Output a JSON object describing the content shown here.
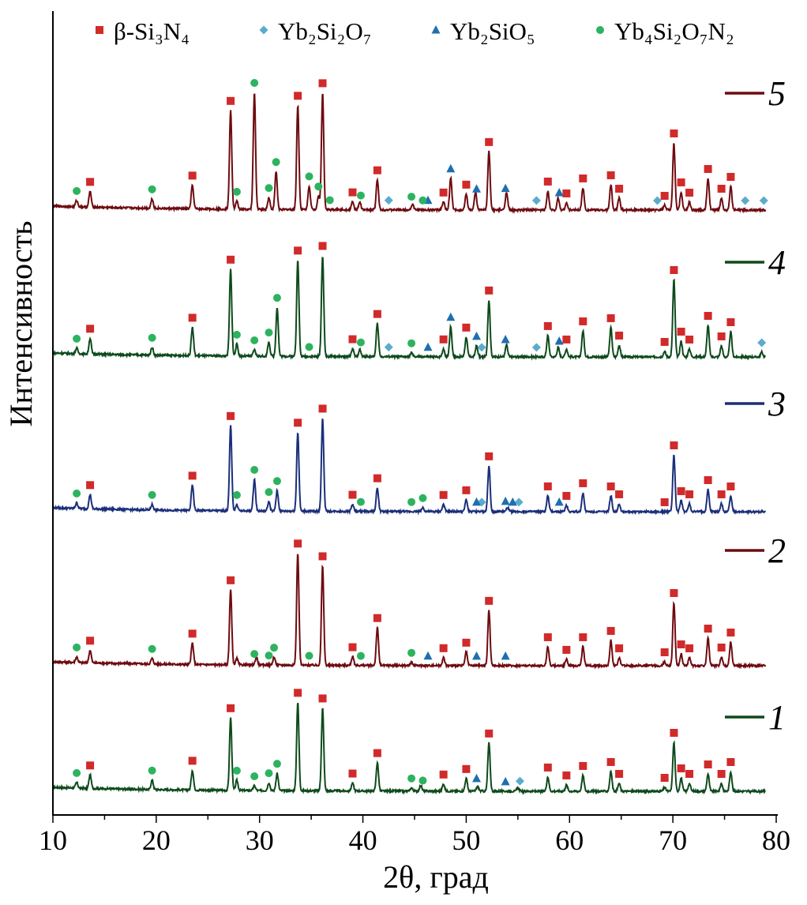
{
  "chart_data": {
    "type": "line",
    "xlabel": "2θ, град",
    "ylabel": "Интенсивность",
    "xlim": [
      10,
      80
    ],
    "xticks": [
      10,
      20,
      30,
      40,
      50,
      60,
      70,
      80
    ],
    "grid": false,
    "yaxis_ticks": "none",
    "legend_placement": "top",
    "legend": [
      {
        "key": "si3n4",
        "label": "β-Si₃N₄",
        "marker": "square",
        "color": "#d12a2a"
      },
      {
        "key": "yb2si2o7",
        "label": "Yb₂Si₂O₇",
        "marker": "diamond",
        "color": "#5aaccc"
      },
      {
        "key": "yb2sio5",
        "label": "Yb₂SiO₅",
        "marker": "triangle",
        "color": "#1f6fb0"
      },
      {
        "key": "yb4si2o7n2",
        "label": "Yb₄Si₂O₇N₂",
        "marker": "circle",
        "color": "#2db35f"
      }
    ],
    "series": [
      {
        "name": "1",
        "color": "#0e4a1c",
        "peaks": [
          [
            12.3,
            7
          ],
          [
            13.6,
            17
          ],
          [
            19.6,
            12
          ],
          [
            23.5,
            25
          ],
          [
            27.2,
            92
          ],
          [
            27.8,
            13
          ],
          [
            29.5,
            6
          ],
          [
            30.9,
            10
          ],
          [
            31.7,
            22
          ],
          [
            33.7,
            112
          ],
          [
            36.1,
            105
          ],
          [
            39,
            10
          ],
          [
            41.4,
            36
          ],
          [
            44.7,
            4
          ],
          [
            45.6,
            7
          ],
          [
            47.8,
            9
          ],
          [
            50,
            16
          ],
          [
            51.1,
            6
          ],
          [
            52.2,
            61
          ],
          [
            55,
            4
          ],
          [
            57.9,
            18
          ],
          [
            59.7,
            8
          ],
          [
            61.3,
            20
          ],
          [
            64,
            25
          ],
          [
            64.8,
            10
          ],
          [
            69.2,
            5
          ],
          [
            70.1,
            62
          ],
          [
            70.8,
            17
          ],
          [
            71.6,
            10
          ],
          [
            73.4,
            22
          ],
          [
            74.7,
            10
          ],
          [
            75.6,
            25
          ]
        ],
        "markers": {
          "si3n4": [
            13.6,
            23.5,
            27.2,
            33.7,
            36.1,
            39,
            41.4,
            47.8,
            50,
            52.2,
            57.9,
            59.7,
            61.3,
            64,
            64.8,
            69.2,
            70.1,
            70.8,
            71.6,
            73.4,
            74.7,
            75.6
          ],
          "yb2si2o7": [
            55.2
          ],
          "yb2sio5": [
            51,
            53.8
          ],
          "yb4si2o7n2": [
            12.3,
            19.6,
            27.8,
            29.5,
            30.9,
            31.7,
            44.7,
            45.8
          ]
        }
      },
      {
        "name": "2",
        "color": "#6e0b10",
        "peaks": [
          [
            12.3,
            7
          ],
          [
            13.6,
            16
          ],
          [
            19.6,
            7
          ],
          [
            23.5,
            27
          ],
          [
            27.2,
            95
          ],
          [
            27.8,
            8
          ],
          [
            29.7,
            10
          ],
          [
            31.4,
            10
          ],
          [
            33.7,
            142
          ],
          [
            36.1,
            126
          ],
          [
            39,
            11
          ],
          [
            41.4,
            48
          ],
          [
            44.7,
            4
          ],
          [
            47.8,
            10
          ],
          [
            50,
            17
          ],
          [
            52.2,
            70
          ],
          [
            57.9,
            24
          ],
          [
            59.7,
            8
          ],
          [
            61.3,
            24
          ],
          [
            64,
            32
          ],
          [
            64.8,
            10
          ],
          [
            69.2,
            5
          ],
          [
            70.1,
            80
          ],
          [
            70.8,
            15
          ],
          [
            71.6,
            10
          ],
          [
            73.4,
            35
          ],
          [
            74.7,
            11
          ],
          [
            75.6,
            30
          ]
        ],
        "markers": {
          "si3n4": [
            13.6,
            23.5,
            27.2,
            33.7,
            36.1,
            39,
            41.4,
            47.8,
            50,
            52.2,
            57.9,
            59.7,
            61.3,
            64,
            64.8,
            69.2,
            70.1,
            70.8,
            71.6,
            73.4,
            74.7,
            75.6
          ],
          "yb2si2o7": [],
          "yb2sio5": [
            46.3,
            51,
            53.8
          ],
          "yb4si2o7n2": [
            12.3,
            19.6,
            29.5,
            30.9,
            31.4,
            34.8,
            39.8,
            44.7
          ]
        }
      },
      {
        "name": "3",
        "color": "#1b2f7a",
        "peaks": [
          [
            12.3,
            7
          ],
          [
            13.6,
            18
          ],
          [
            19.6,
            7
          ],
          [
            23.5,
            32
          ],
          [
            27.2,
            108
          ],
          [
            27.8,
            8
          ],
          [
            29.5,
            40
          ],
          [
            30.9,
            12
          ],
          [
            31.7,
            26
          ],
          [
            33.7,
            100
          ],
          [
            36.1,
            118
          ],
          [
            39,
            9
          ],
          [
            41.4,
            30
          ],
          [
            45.8,
            5
          ],
          [
            47.8,
            9
          ],
          [
            50,
            15
          ],
          [
            52.2,
            58
          ],
          [
            54,
            5
          ],
          [
            57.9,
            20
          ],
          [
            59.7,
            8
          ],
          [
            61.3,
            24
          ],
          [
            64,
            20
          ],
          [
            64.8,
            10
          ],
          [
            70.1,
            72
          ],
          [
            70.8,
            14
          ],
          [
            71.6,
            10
          ],
          [
            73.4,
            28
          ],
          [
            74.7,
            10
          ],
          [
            75.6,
            20
          ]
        ],
        "markers": {
          "si3n4": [
            13.6,
            23.5,
            27.2,
            33.7,
            36.1,
            39,
            41.4,
            47.8,
            50,
            52.2,
            57.9,
            59.7,
            61.3,
            64,
            64.8,
            69.2,
            70.1,
            70.8,
            71.6,
            73.4,
            74.7,
            75.6
          ],
          "yb2si2o7": [
            51.5,
            55.1
          ],
          "yb2sio5": [
            51,
            53.8,
            54.5,
            59
          ],
          "yb4si2o7n2": [
            12.3,
            19.6,
            27.8,
            29.5,
            30.9,
            31.7,
            39.8,
            44.7,
            45.8
          ]
        }
      },
      {
        "name": "4",
        "color": "#0e4a1c",
        "peaks": [
          [
            12.3,
            7
          ],
          [
            13.6,
            20
          ],
          [
            19.6,
            10
          ],
          [
            23.5,
            36
          ],
          [
            27.2,
            110
          ],
          [
            27.8,
            15
          ],
          [
            29.5,
            8
          ],
          [
            30.9,
            18
          ],
          [
            31.7,
            62
          ],
          [
            33.7,
            122
          ],
          [
            36.1,
            128
          ],
          [
            39,
            10
          ],
          [
            39.7,
            9
          ],
          [
            41.4,
            42
          ],
          [
            44.7,
            5
          ],
          [
            47.8,
            10
          ],
          [
            48.5,
            38
          ],
          [
            50,
            25
          ],
          [
            51,
            14
          ],
          [
            52.2,
            72
          ],
          [
            53.9,
            15
          ],
          [
            57.9,
            27
          ],
          [
            58.9,
            12
          ],
          [
            59.7,
            10
          ],
          [
            61.3,
            33
          ],
          [
            64,
            37
          ],
          [
            64.8,
            15
          ],
          [
            69.2,
            7
          ],
          [
            70.1,
            98
          ],
          [
            70.8,
            20
          ],
          [
            71.6,
            10
          ],
          [
            73.4,
            40
          ],
          [
            74.7,
            14
          ],
          [
            75.6,
            32
          ],
          [
            78.6,
            6
          ]
        ],
        "markers": {
          "si3n4": [
            13.6,
            23.5,
            27.2,
            33.7,
            36.1,
            39,
            41.4,
            47.8,
            50,
            52.2,
            57.9,
            59.7,
            61.3,
            64,
            64.8,
            69.2,
            70.1,
            70.8,
            71.6,
            73.4,
            74.7,
            75.6
          ],
          "yb2si2o7": [
            42.5,
            51.5,
            56.8,
            78.6
          ],
          "yb2sio5": [
            46.3,
            48.5,
            51,
            53.8,
            59
          ],
          "yb4si2o7n2": [
            12.3,
            19.6,
            27.8,
            29.5,
            30.9,
            31.7,
            34.8,
            39.8,
            44.7
          ]
        }
      },
      {
        "name": "5",
        "color": "#6e0b10",
        "peaks": [
          [
            12.3,
            8
          ],
          [
            13.6,
            20
          ],
          [
            19.6,
            12
          ],
          [
            23.5,
            30
          ],
          [
            27.2,
            125
          ],
          [
            27.8,
            10
          ],
          [
            29.5,
            148
          ],
          [
            30.9,
            15
          ],
          [
            31.6,
            48
          ],
          [
            33.7,
            132
          ],
          [
            34.8,
            30
          ],
          [
            35.7,
            17
          ],
          [
            36.1,
            148
          ],
          [
            39,
            10
          ],
          [
            39.7,
            9
          ],
          [
            41.4,
            38
          ],
          [
            44.8,
            7
          ],
          [
            47.8,
            10
          ],
          [
            48.5,
            40
          ],
          [
            50,
            20
          ],
          [
            50.9,
            22
          ],
          [
            52.2,
            74
          ],
          [
            53.9,
            23
          ],
          [
            57.9,
            24
          ],
          [
            58.9,
            15
          ],
          [
            59.7,
            9
          ],
          [
            61.3,
            28
          ],
          [
            64,
            32
          ],
          [
            64.8,
            15
          ],
          [
            69.2,
            6
          ],
          [
            70.1,
            85
          ],
          [
            70.8,
            23
          ],
          [
            71.6,
            10
          ],
          [
            73.4,
            40
          ],
          [
            74.7,
            15
          ],
          [
            75.6,
            30
          ]
        ],
        "markers": {
          "si3n4": [
            13.6,
            23.5,
            27.2,
            33.7,
            36.1,
            39,
            41.4,
            47.8,
            50,
            52.2,
            57.9,
            59.7,
            61.3,
            64,
            64.8,
            69.2,
            70.1,
            70.8,
            71.6,
            73.4,
            74.7,
            75.6
          ],
          "yb2si2o7": [
            42.5,
            56.8,
            68.5,
            77,
            78.8
          ],
          "yb2sio5": [
            46.3,
            48.5,
            51,
            53.8,
            59
          ],
          "yb4si2o7n2": [
            12.3,
            19.6,
            27.8,
            29.5,
            30.9,
            31.6,
            34.8,
            35.7,
            36.8,
            39.8,
            44.7,
            45.8
          ]
        }
      }
    ]
  }
}
